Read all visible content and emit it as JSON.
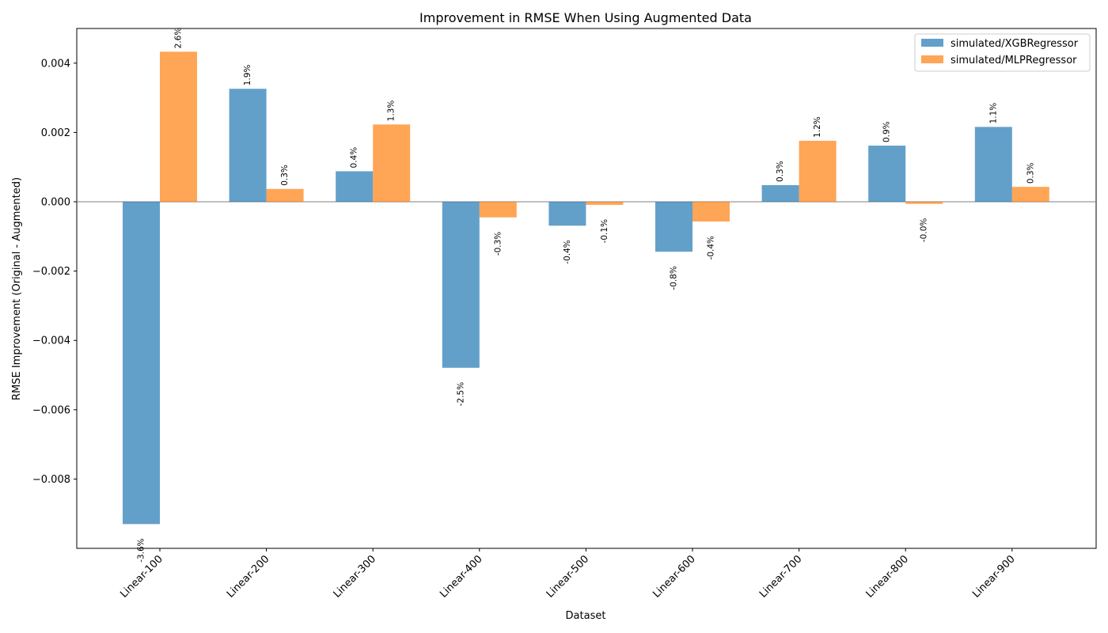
{
  "chart_data": {
    "type": "bar",
    "title": "Improvement in RMSE When Using Augmented Data",
    "xlabel": "Dataset",
    "ylabel": "RMSE Improvement (Original - Augmented)",
    "categories": [
      "Linear-100",
      "Linear-200",
      "Linear-300",
      "Linear-400",
      "Linear-500",
      "Linear-600",
      "Linear-700",
      "Linear-800",
      "Linear-900"
    ],
    "ylim": [
      -0.01,
      0.005
    ],
    "yticks": [
      {
        "value": -0.008,
        "label": "−0.008"
      },
      {
        "value": -0.006,
        "label": "−0.006"
      },
      {
        "value": -0.004,
        "label": "−0.004"
      },
      {
        "value": -0.002,
        "label": "−0.002"
      },
      {
        "value": 0.0,
        "label": "0.000"
      },
      {
        "value": 0.002,
        "label": "0.002"
      },
      {
        "value": 0.004,
        "label": "0.004"
      }
    ],
    "legend_position": "top-right",
    "grid": false,
    "series": [
      {
        "name": "simulated/XGBRegressor",
        "color": "#1f77b4",
        "values": [
          -0.0093,
          0.00326,
          0.00088,
          -0.00479,
          -0.00069,
          -0.00144,
          0.00048,
          0.00162,
          0.00216
        ],
        "labels": [
          "-3.6%",
          "1.9%",
          "0.4%",
          "-2.5%",
          "-0.4%",
          "-0.8%",
          "0.3%",
          "0.9%",
          "1.1%"
        ]
      },
      {
        "name": "simulated/MLPRegressor",
        "color": "#ff7f0e",
        "values": [
          0.00433,
          0.00037,
          0.00223,
          -0.00045,
          -9e-05,
          -0.00057,
          0.00176,
          -6e-05,
          0.00043
        ],
        "labels": [
          "2.6%",
          "0.3%",
          "1.3%",
          "-0.3%",
          "-0.1%",
          "-0.4%",
          "1.2%",
          "-0.0%",
          "0.3%"
        ]
      }
    ]
  }
}
